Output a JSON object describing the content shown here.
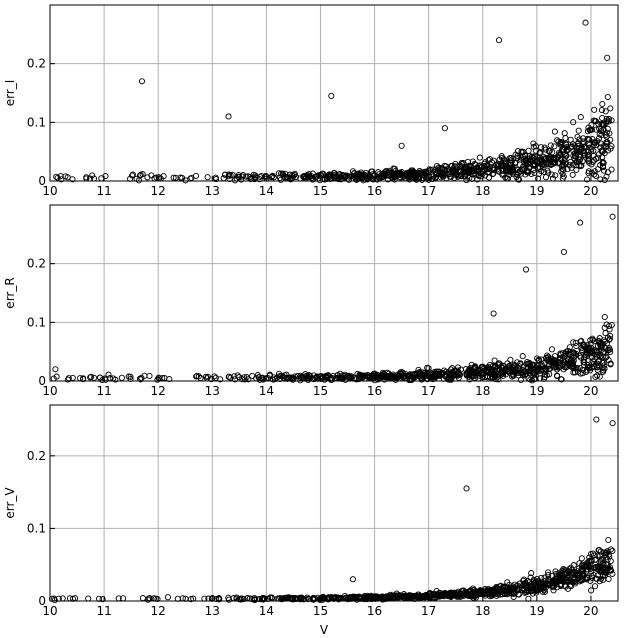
{
  "chart_data": [
    {
      "type": "scatter",
      "title": "",
      "xlabel": "",
      "ylabel": "err_I",
      "xlim": [
        10,
        20.5
      ],
      "ylim": [
        0,
        0.3
      ],
      "xticks": [
        10,
        11,
        12,
        13,
        14,
        15,
        16,
        17,
        18,
        19,
        20
      ],
      "yticks": [
        0,
        0.1,
        0.2
      ],
      "ytick_labels": [
        "0",
        "0.1",
        "0.2"
      ],
      "grid": true,
      "marker": "open-circle",
      "color": "#000000",
      "outliers": [
        [
          11.7,
          0.17
        ],
        [
          13.3,
          0.11
        ],
        [
          15.2,
          0.145
        ],
        [
          18.3,
          0.24
        ],
        [
          16.5,
          0.06
        ],
        [
          17.3,
          0.09
        ],
        [
          19.9,
          0.27
        ],
        [
          20.3,
          0.21
        ]
      ],
      "trend": {
        "a": 0.006,
        "b": 4e-05,
        "v0": 10,
        "k": 0.72
      },
      "spread": 0.45,
      "n_points": 900
    },
    {
      "type": "scatter",
      "title": "",
      "xlabel": "",
      "ylabel": "err_R",
      "xlim": [
        10,
        20.5
      ],
      "ylim": [
        0,
        0.3
      ],
      "xticks": [
        10,
        11,
        12,
        13,
        14,
        15,
        16,
        17,
        18,
        19,
        20
      ],
      "yticks": [
        0,
        0.1,
        0.2
      ],
      "ytick_labels": [
        "0",
        "0.1",
        "0.2"
      ],
      "grid": true,
      "marker": "open-circle",
      "color": "#000000",
      "outliers": [
        [
          10.1,
          0.02
        ],
        [
          18.8,
          0.19
        ],
        [
          19.8,
          0.27
        ],
        [
          20.4,
          0.28
        ],
        [
          18.2,
          0.115
        ],
        [
          19.5,
          0.22
        ]
      ],
      "trend": {
        "a": 0.005,
        "b": 3e-05,
        "v0": 10,
        "k": 0.72
      },
      "spread": 0.4,
      "n_points": 850
    },
    {
      "type": "scatter",
      "title": "",
      "xlabel": "V",
      "ylabel": "err_V",
      "xlim": [
        10,
        20.5
      ],
      "ylim": [
        0,
        0.27
      ],
      "xticks": [
        10,
        11,
        12,
        13,
        14,
        15,
        16,
        17,
        18,
        19,
        20
      ],
      "yticks": [
        0,
        0.1,
        0.2
      ],
      "ytick_labels": [
        "0",
        "0.1",
        "0.2"
      ],
      "grid": true,
      "marker": "open-circle",
      "color": "#000000",
      "outliers": [
        [
          17.7,
          0.155
        ],
        [
          20.1,
          0.25
        ],
        [
          20.4,
          0.245
        ],
        [
          15.6,
          0.03
        ]
      ],
      "trend": {
        "a": 0.003,
        "b": 2e-05,
        "v0": 10,
        "k": 0.76
      },
      "spread": 0.25,
      "n_points": 900
    }
  ]
}
